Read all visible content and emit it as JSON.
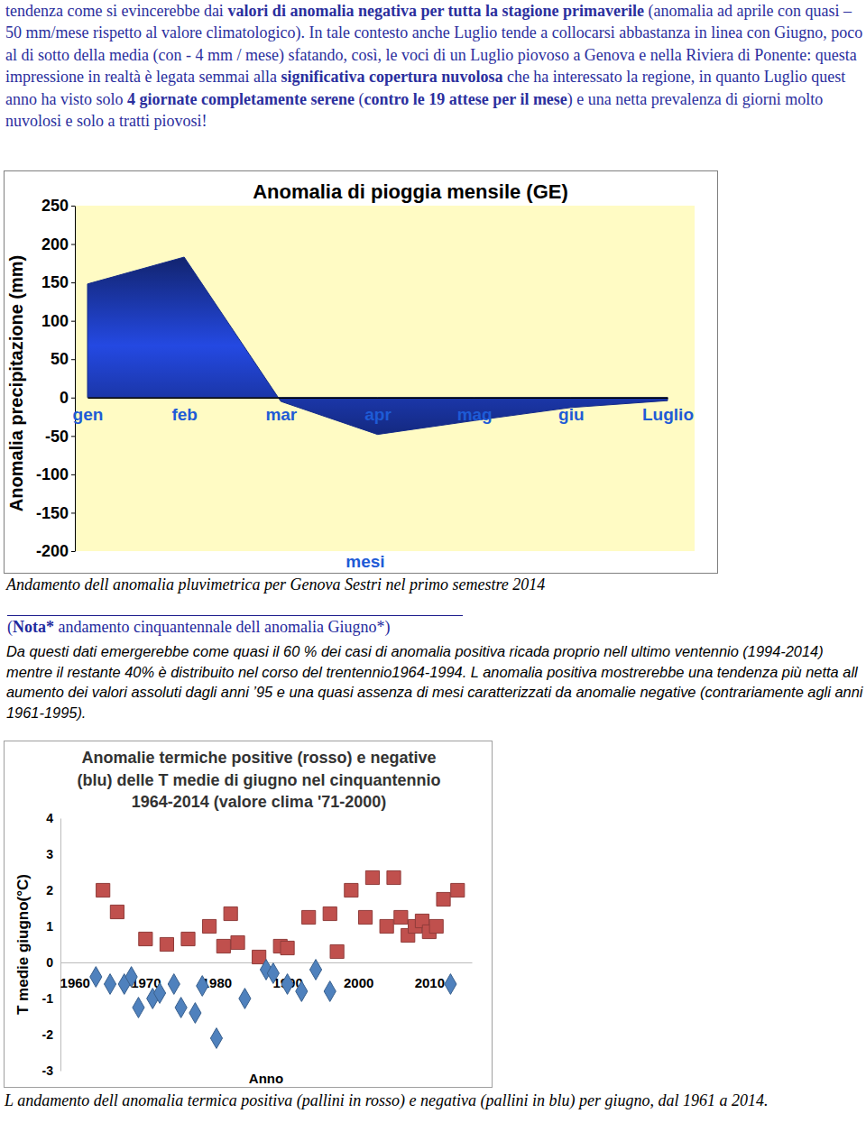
{
  "intro": {
    "runs": [
      {
        "text": "tendenza come si evincerebbe dai ",
        "bold": false
      },
      {
        "text": "valori di anomalia negativa per tutta la stagione primaverile",
        "bold": true
      },
      {
        "text": " (anomalia ad aprile con quasi – 50 mm/mese rispetto al valore climatologico). In tale contesto anche Luglio tende a collocarsi abbastanza in linea con Giugno, poco al di sotto della media (con - 4 mm / mese) sfatando, così, le voci di un Luglio piovoso a Genova e nella Riviera di Ponente: questa impressione in realtà è legata semmai alla ",
        "bold": false
      },
      {
        "text": "significativa copertura nuvolosa",
        "bold": true
      },
      {
        "text": " che ha interessato la regione, in quanto Luglio quest anno ha visto solo ",
        "bold": false
      },
      {
        "text": "4 giornate completamente serene",
        "bold": true
      },
      {
        "text": " (",
        "bold": false
      },
      {
        "text": "contro le 19 attese per il mese",
        "bold": true
      },
      {
        "text": ") e una netta prevalenza di giorni molto nuvolosi e solo a tratti piovosi!",
        "bold": false
      }
    ]
  },
  "chart_data": [
    {
      "type": "area",
      "title": "Anomalia di pioggia mensile (GE)",
      "x_label": "mesi",
      "y_label": "Anomalia precipitazione (mm)",
      "categories": [
        "gen",
        "feb",
        "mar",
        "apr",
        "mag",
        "giu",
        "Luglio"
      ],
      "values": [
        148,
        183,
        -5,
        -48,
        -30,
        -13,
        -4
      ],
      "color": "#1f3fc4",
      "ylim": [
        -200,
        250
      ],
      "yticks": [
        -200,
        -150,
        -100,
        -50,
        0,
        50,
        100,
        150,
        200,
        250
      ],
      "grid": false
    },
    {
      "type": "scatter",
      "title": [
        "Anomalie termiche positive (rosso) e negative",
        "(blu) delle T medie di giugno nel cinquantennio",
        "1964-2014 (valore clima '71-2000)"
      ],
      "x_label": "Anno",
      "y_label": "T medie giugno(°C)",
      "xlim": [
        1958,
        2016
      ],
      "xticks": [
        1960,
        1970,
        1980,
        1990,
        2000,
        2010
      ],
      "ylim": [
        -3,
        4
      ],
      "yticks": [
        -3,
        -2,
        -1,
        0,
        1,
        2,
        3,
        4
      ],
      "grid": false,
      "series": [
        {
          "color": "#c0504d",
          "marker": "square",
          "x": [
            1964,
            1966,
            1970,
            1973,
            1976,
            1979,
            1981,
            1982,
            1983,
            1986,
            1989,
            1990,
            1993,
            1996,
            1997,
            1999,
            2001,
            2002,
            2004,
            2005,
            2006,
            2007,
            2008,
            2009,
            2010,
            2011,
            2012,
            2014
          ],
          "values": [
            2.0,
            1.4,
            0.65,
            0.5,
            0.65,
            1.0,
            0.45,
            1.35,
            0.55,
            0.15,
            0.45,
            0.4,
            1.25,
            1.35,
            0.3,
            2.0,
            1.25,
            2.35,
            1.0,
            2.35,
            1.25,
            0.75,
            1.0,
            1.15,
            0.85,
            1.0,
            1.75,
            2.0
          ]
        },
        {
          "color": "#4f81bd",
          "marker": "diamond",
          "x": [
            1963,
            1965,
            1967,
            1968,
            1969,
            1971,
            1972,
            1974,
            1975,
            1977,
            1978,
            1980,
            1984,
            1987,
            1988,
            1990,
            1992,
            1994,
            1996,
            2013
          ],
          "values": [
            -0.4,
            -0.6,
            -0.6,
            -0.4,
            -1.25,
            -1.0,
            -0.85,
            -0.6,
            -1.25,
            -1.4,
            -0.65,
            -2.1,
            -1.0,
            -0.2,
            -0.3,
            -0.6,
            -0.8,
            -0.2,
            -0.8,
            -0.6
          ]
        }
      ]
    }
  ],
  "caption1": "Andamento dell anomalia pluvimetrica per Genova Sestri nel primo semestre 2014",
  "note": {
    "runs": [
      {
        "text": "(",
        "bold": false
      },
      {
        "text": "Nota*",
        "bold": true
      },
      {
        "text": " andamento cinquantennale dell anomalia Giugno*)",
        "bold": false
      }
    ]
  },
  "note_body": "Da questi dati emergerebbe come quasi il 60 % dei casi di anomalia positiva ricada proprio nell ultimo ventennio (1994-2014) mentre il restante 40% è distribuito nel corso del trentennio1964-1994. L anomalia positiva mostrerebbe una tendenza più netta all aumento dei valori assoluti dagli anni ’95 e una quasi assenza di mesi caratterizzati da anomalie negative (contrariamente agli anni 1961-1995).",
  "caption2": "L andamento dell anomalia termica positiva (pallini in rosso) e negativa (pallini in blu) per giugno, dal 1961 a 2014."
}
